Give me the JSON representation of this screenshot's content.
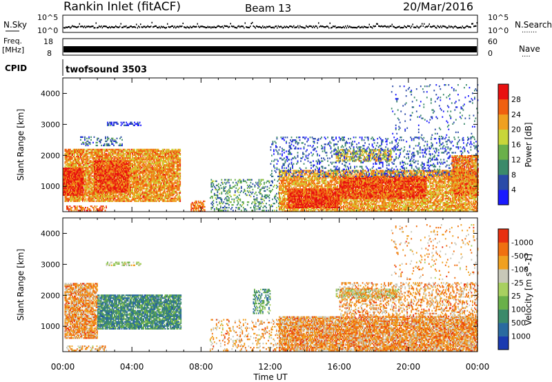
{
  "header": {
    "title": "Rankin Inlet (fitACF)",
    "beam": "Beam 13",
    "date": "20/Mar/2016"
  },
  "panels": {
    "nsky": {
      "label": "N.Sky",
      "right_label": "N.Search",
      "tick_top": "10^5",
      "tick_bottom": "10^0"
    },
    "freq": {
      "label": "Freq.",
      "unit": "[MHz]",
      "tick_top": "18",
      "tick_bottom": "8",
      "right_label": "Nave",
      "right_tick_top": "60",
      "right_tick_bottom": "0"
    },
    "cpid": {
      "label": "CPID",
      "value": "twofsound 3503"
    }
  },
  "chart_data": [
    {
      "type": "heatmap",
      "name": "power",
      "ylabel": "Slant Range [km]",
      "xlabel": "Time UT",
      "ylim": [
        180,
        4500
      ],
      "y_ticks": [
        1000,
        2000,
        3000,
        4000
      ],
      "x_ticks": [
        "00:00",
        "04:00",
        "08:00",
        "12:00",
        "16:00",
        "20:00",
        "00:00"
      ],
      "colorbar": {
        "label": "Power [dB]",
        "ticks": [
          "4",
          "8",
          "12",
          "16",
          "20",
          "24",
          "28"
        ],
        "colors": [
          "#1a1aff",
          "#2a4aa8",
          "#3b8a6a",
          "#6ab04a",
          "#c8d63a",
          "#f0a020",
          "#f06010",
          "#e81010"
        ]
      },
      "regions": [
        {
          "t0": 0.1,
          "t1": 6.8,
          "r0": 500,
          "r1": 2200,
          "level": 0.72,
          "density": 0.85
        },
        {
          "t0": 0.0,
          "t1": 1.2,
          "r0": 700,
          "r1": 1600,
          "level": 0.88,
          "density": 0.95
        },
        {
          "t0": 1.8,
          "t1": 3.8,
          "r0": 800,
          "r1": 1800,
          "level": 0.85,
          "density": 0.9
        },
        {
          "t0": 1.0,
          "t1": 3.5,
          "r0": 2300,
          "r1": 2600,
          "level": 0.25,
          "density": 0.3
        },
        {
          "t0": 0.2,
          "t1": 2.5,
          "r0": 200,
          "r1": 350,
          "level": 0.8,
          "density": 0.5
        },
        {
          "t0": 7.4,
          "t1": 8.2,
          "r0": 180,
          "r1": 500,
          "level": 0.8,
          "density": 0.6
        },
        {
          "t0": 8.5,
          "t1": 12.5,
          "r0": 200,
          "r1": 1200,
          "level": 0.35,
          "density": 0.25
        },
        {
          "t0": 12.5,
          "t1": 24.0,
          "r0": 180,
          "r1": 1500,
          "level": 0.7,
          "density": 0.75
        },
        {
          "t0": 13.0,
          "t1": 16.0,
          "r0": 300,
          "r1": 900,
          "level": 0.88,
          "density": 0.9
        },
        {
          "t0": 16.0,
          "t1": 21.0,
          "r0": 600,
          "r1": 1300,
          "level": 0.85,
          "density": 0.85
        },
        {
          "t0": 15.8,
          "t1": 19.0,
          "r0": 1800,
          "r1": 2200,
          "level": 0.6,
          "density": 0.6
        },
        {
          "t0": 12.0,
          "t1": 24.0,
          "r0": 1300,
          "r1": 2600,
          "level": 0.2,
          "density": 0.2
        },
        {
          "t0": 2.5,
          "t1": 4.5,
          "r0": 2950,
          "r1": 3050,
          "level": 0.1,
          "density": 0.5
        },
        {
          "t0": 19.0,
          "t1": 24.0,
          "r0": 2500,
          "r1": 4300,
          "level": 0.2,
          "density": 0.06
        },
        {
          "t0": 22.5,
          "t1": 24.0,
          "r0": 700,
          "r1": 2000,
          "level": 0.75,
          "density": 0.8
        }
      ]
    },
    {
      "type": "heatmap",
      "name": "velocity",
      "ylabel": "Slant Range [km]",
      "xlabel": "Time UT",
      "ylim": [
        180,
        4500
      ],
      "y_ticks": [
        1000,
        2000,
        3000,
        4000
      ],
      "x_ticks": [
        "00:00",
        "04:00",
        "08:00",
        "12:00",
        "16:00",
        "20:00",
        "00:00"
      ],
      "colorbar": {
        "label": "Velocity [m s^-1]",
        "ticks": [
          "1000",
          "500",
          "100",
          "25",
          "-25",
          "-100",
          "-500",
          "-1000"
        ],
        "colors": [
          "#1a3ab0",
          "#2a6aa0",
          "#3b8a6a",
          "#6ab04a",
          "#a8d060",
          "#c8c8b8",
          "#f0a020",
          "#f07010",
          "#e83010"
        ]
      },
      "regions": [
        {
          "t0": 0.1,
          "t1": 2.0,
          "r0": 600,
          "r1": 2400,
          "level": 0.75,
          "density": 0.8
        },
        {
          "t0": 2.0,
          "t1": 6.8,
          "r0": 900,
          "r1": 2000,
          "level": 0.28,
          "density": 0.85
        },
        {
          "t0": 0.2,
          "t1": 2.5,
          "r0": 200,
          "r1": 350,
          "level": 0.7,
          "density": 0.4
        },
        {
          "t0": 2.5,
          "t1": 4.5,
          "r0": 2950,
          "r1": 3050,
          "level": 0.55,
          "density": 0.5
        },
        {
          "t0": 8.5,
          "t1": 12.5,
          "r0": 200,
          "r1": 1200,
          "level": 0.72,
          "density": 0.2
        },
        {
          "t0": 11.0,
          "t1": 12.0,
          "r0": 1400,
          "r1": 2200,
          "level": 0.3,
          "density": 0.4
        },
        {
          "t0": 12.5,
          "t1": 24.0,
          "r0": 200,
          "r1": 1300,
          "level": 0.75,
          "density": 0.85
        },
        {
          "t0": 15.8,
          "t1": 19.5,
          "r0": 1900,
          "r1": 2200,
          "level": 0.55,
          "density": 0.6
        },
        {
          "t0": 16.0,
          "t1": 24.0,
          "r0": 1300,
          "r1": 2400,
          "level": 0.74,
          "density": 0.35
        },
        {
          "t0": 19.0,
          "t1": 24.0,
          "r0": 2500,
          "r1": 4300,
          "level": 0.72,
          "density": 0.06
        }
      ]
    }
  ],
  "colors": {
    "frame": "#000000",
    "background": "#ffffff"
  }
}
